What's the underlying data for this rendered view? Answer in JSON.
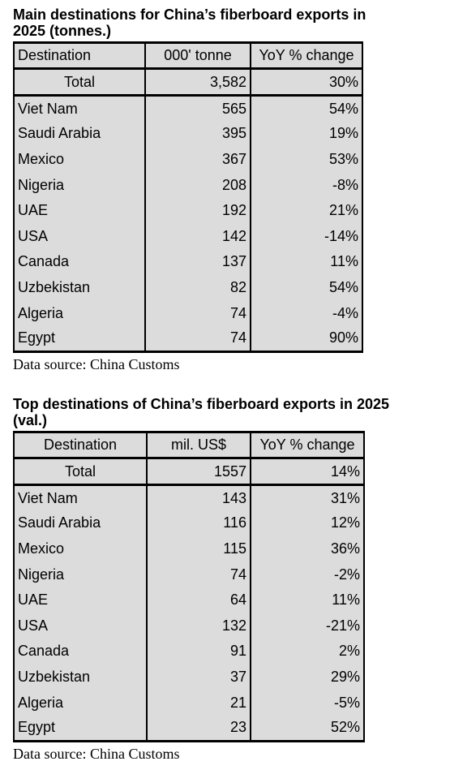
{
  "table1": {
    "title": "Main destinations for China’s fiberboard exports in\n2025 (tonnes.)",
    "headers": [
      "Destination",
      "000' tonne",
      "YoY % change"
    ],
    "total": {
      "label": "Total",
      "value": "3,582",
      "yoy": "30%"
    },
    "rows": [
      {
        "dest": "Viet Nam",
        "value": "565",
        "yoy": "54%"
      },
      {
        "dest": "Saudi Arabia",
        "value": "395",
        "yoy": "19%"
      },
      {
        "dest": "Mexico",
        "value": "367",
        "yoy": "53%"
      },
      {
        "dest": "Nigeria",
        "value": "208",
        "yoy": "-8%"
      },
      {
        "dest": "UAE",
        "value": "192",
        "yoy": "21%"
      },
      {
        "dest": "USA",
        "value": "142",
        "yoy": "-14%"
      },
      {
        "dest": "Canada",
        "value": "137",
        "yoy": "11%"
      },
      {
        "dest": "Uzbekistan",
        "value": "82",
        "yoy": "54%"
      },
      {
        "dest": "Algeria",
        "value": "74",
        "yoy": "-4%"
      },
      {
        "dest": "Egypt",
        "value": "74",
        "yoy": "90%"
      }
    ],
    "source": "Data source: China Customs"
  },
  "table2": {
    "title": "Top destinations of China’s fiberboard exports in 2025\n(val.)",
    "headers": [
      "Destination",
      "mil. US$",
      "YoY % change"
    ],
    "total": {
      "label": "Total",
      "value": "1557",
      "yoy": "14%"
    },
    "rows": [
      {
        "dest": "Viet Nam",
        "value": "143",
        "yoy": "31%"
      },
      {
        "dest": "Saudi Arabia",
        "value": "116",
        "yoy": "12%"
      },
      {
        "dest": "Mexico",
        "value": "115",
        "yoy": "36%"
      },
      {
        "dest": "Nigeria",
        "value": "74",
        "yoy": "-2%"
      },
      {
        "dest": "UAE",
        "value": "64",
        "yoy": "11%"
      },
      {
        "dest": "USA",
        "value": "132",
        "yoy": "-21%"
      },
      {
        "dest": "Canada",
        "value": "91",
        "yoy": "2%"
      },
      {
        "dest": "Uzbekistan",
        "value": "37",
        "yoy": "29%"
      },
      {
        "dest": "Algeria",
        "value": "21",
        "yoy": "-5%"
      },
      {
        "dest": "Egypt",
        "value": "23",
        "yoy": "52%"
      }
    ],
    "source": "Data source: China Customs"
  }
}
